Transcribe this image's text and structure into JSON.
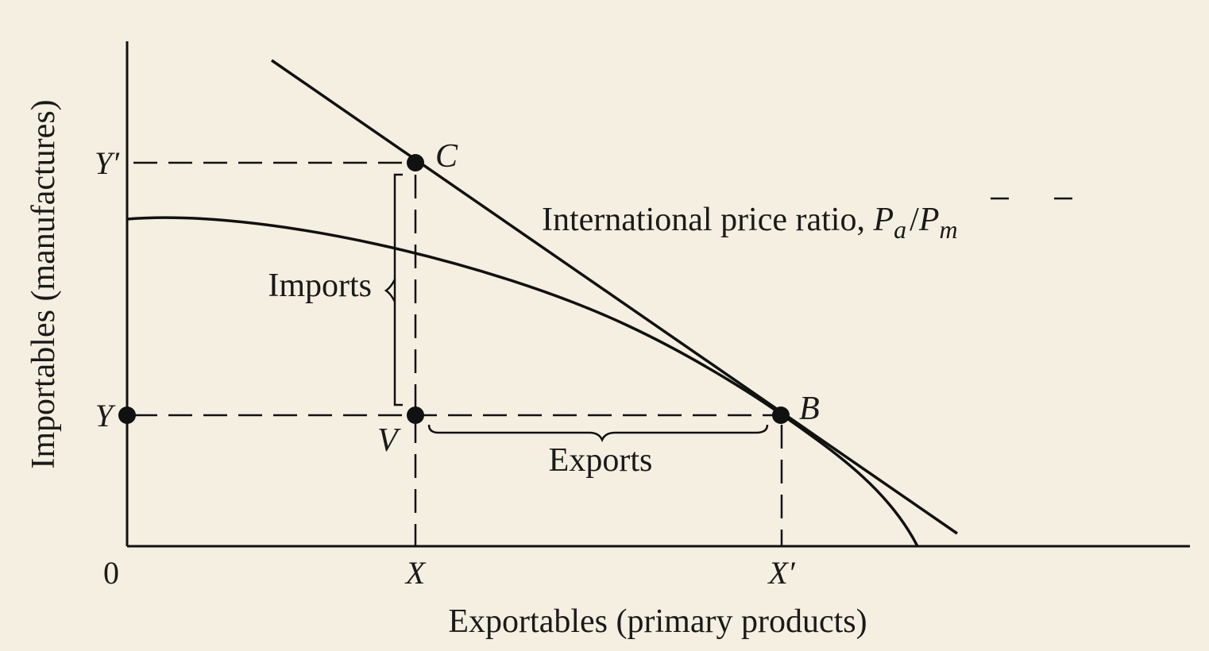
{
  "axes": {
    "y_label": "Importables (manufactures)",
    "x_label": "Exportables (primary products)",
    "origin_label": "0"
  },
  "ticks": {
    "x": "X",
    "x_prime": "X′",
    "y": "Y",
    "y_prime": "Y′"
  },
  "points": {
    "c": "C",
    "b": "B",
    "v": "V"
  },
  "annotations": {
    "imports": "Imports",
    "exports": "Exports",
    "price_ratio_text": "International price ratio, ",
    "price_ratio_pa": "P",
    "price_ratio_a": "a",
    "price_ratio_slash": "/",
    "price_ratio_pm": "P",
    "price_ratio_m": "m"
  },
  "colors": {
    "background": "#f4efe1",
    "ink": "#111111"
  }
}
